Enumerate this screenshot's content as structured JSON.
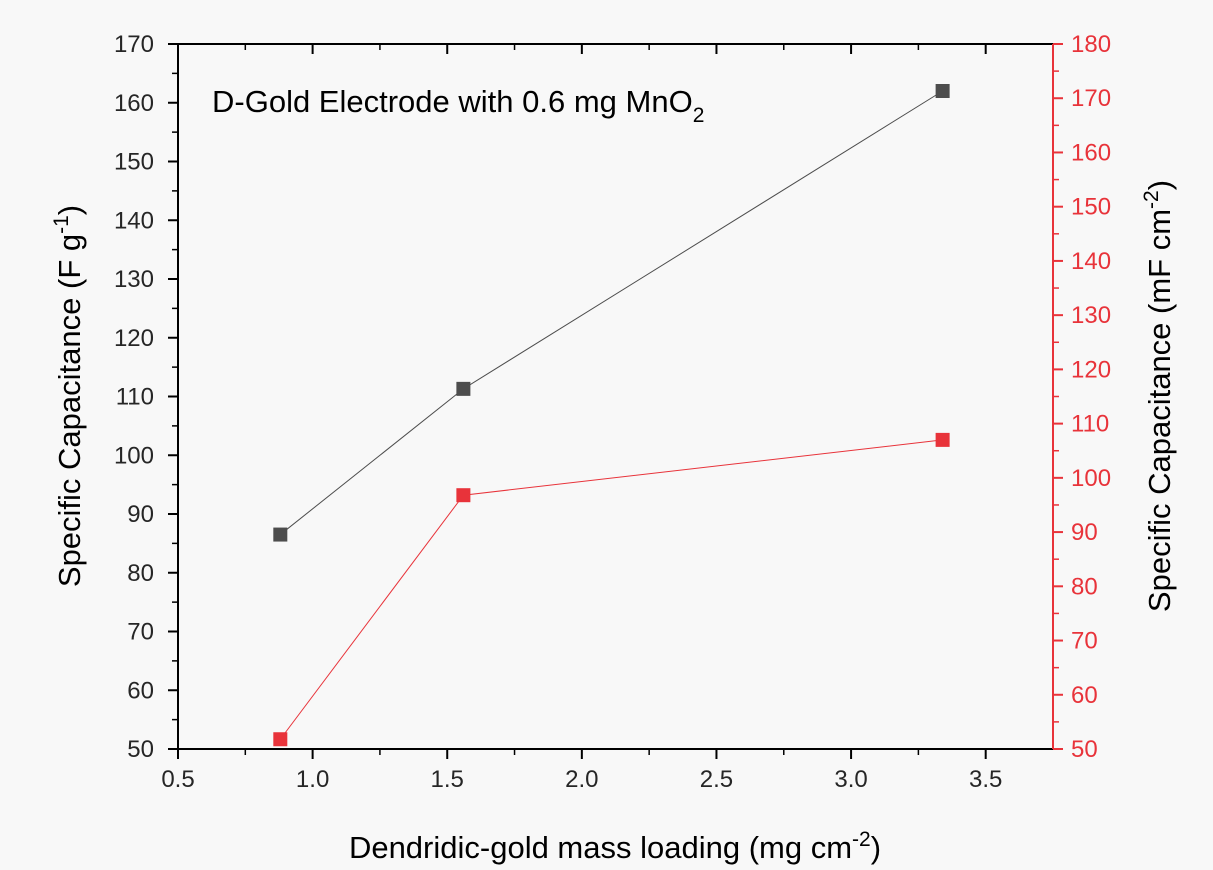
{
  "chart_data": {
    "type": "line",
    "title": "D-Gold Electrode with 0.6 mg MnO",
    "title_subscript": "2",
    "xlabel": "Dendridic-gold mass loading (mg cm",
    "xlabel_sup": "-2",
    "xlabel_end": ")",
    "ylabel_left": "Specific Capacitance (F g",
    "ylabel_left_sup": "-1",
    "ylabel_left_end": ")",
    "ylabel_right": "Specific Capacitance (mF cm",
    "ylabel_right_sup": "-2",
    "ylabel_right_end": ")",
    "xlim": [
      0.5,
      3.75
    ],
    "ylim_left": [
      50,
      170
    ],
    "ylim_right": [
      50,
      180
    ],
    "x_ticks": [
      "0.5",
      "1.0",
      "1.5",
      "2.0",
      "2.5",
      "3.0",
      "3.5"
    ],
    "y_left_ticks": [
      "50",
      "60",
      "70",
      "80",
      "90",
      "100",
      "110",
      "120",
      "130",
      "140",
      "150",
      "160",
      "170"
    ],
    "y_right_ticks": [
      "50",
      "60",
      "70",
      "80",
      "90",
      "100",
      "110",
      "120",
      "130",
      "140",
      "150",
      "160",
      "170",
      "180"
    ],
    "grid": false,
    "series": [
      {
        "axis": "left",
        "color": "#4d4d4d",
        "marker": "square",
        "x": [
          0.88,
          1.56,
          3.34
        ],
        "y": [
          86.5,
          111.3,
          162.0
        ]
      },
      {
        "axis": "right",
        "color": "#e8333a",
        "marker": "square",
        "x": [
          0.88,
          1.56,
          3.34
        ],
        "y": [
          51.8,
          96.8,
          107.0
        ]
      }
    ],
    "colors": {
      "left_axis": "#000000",
      "right_axis": "#e8333a",
      "background": "#f8f8f8"
    }
  }
}
